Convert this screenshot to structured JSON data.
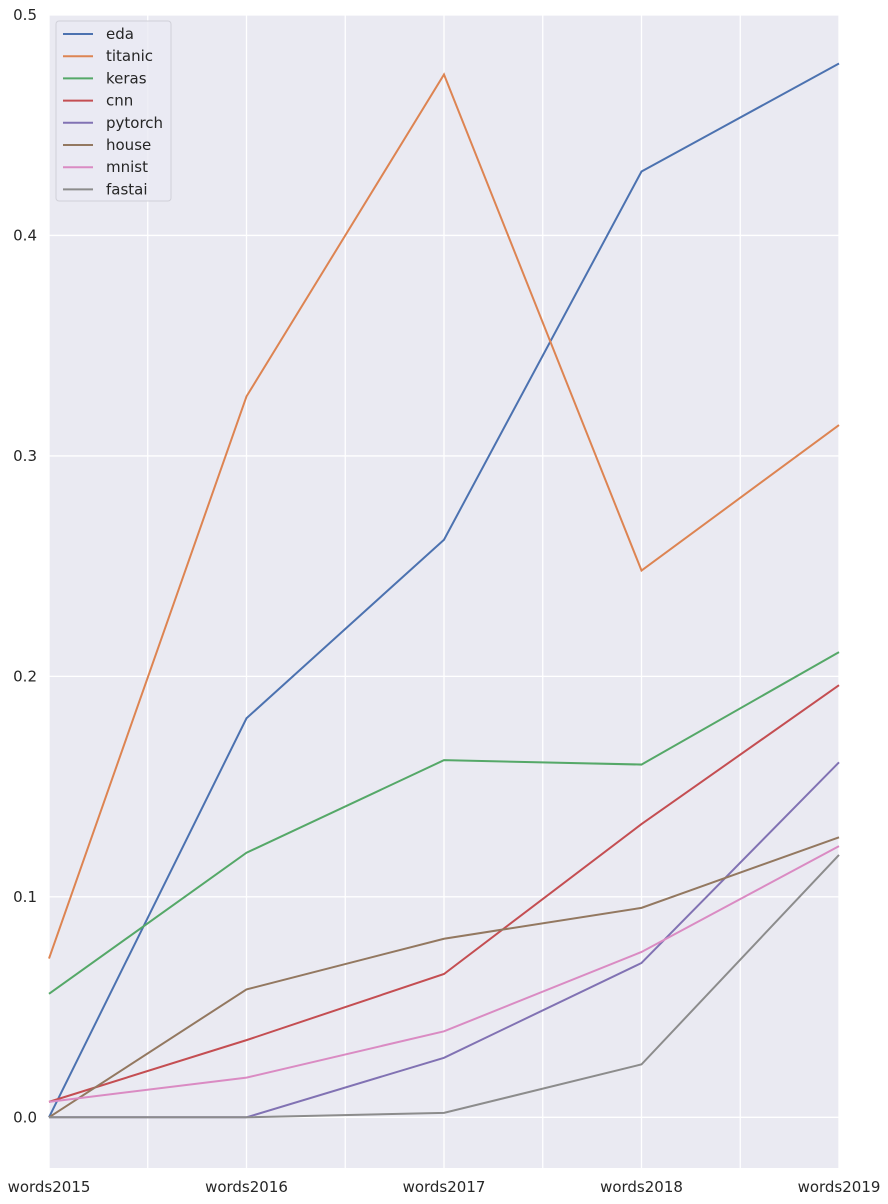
{
  "chart_data": {
    "type": "line",
    "title": "",
    "xlabel": "",
    "ylabel": "",
    "categories": [
      "words2015",
      "words2016",
      "words2017",
      "words2018",
      "words2019"
    ],
    "ylim": [
      -0.023,
      0.5
    ],
    "yticks": [
      "0.0",
      "0.1",
      "0.2",
      "0.3",
      "0.4",
      "0.5"
    ],
    "ytick_values": [
      0,
      0.1,
      0.2,
      0.3,
      0.4,
      0.5
    ],
    "grid": true,
    "background": "#eaeaf2",
    "legend_position": "top-left",
    "series": [
      {
        "name": "eda",
        "color": "#4c72b0",
        "values": [
          0.0,
          0.181,
          0.262,
          0.429,
          0.478
        ]
      },
      {
        "name": "titanic",
        "color": "#dd8452",
        "values": [
          0.072,
          0.327,
          0.473,
          0.248,
          0.314
        ]
      },
      {
        "name": "keras",
        "color": "#55a868",
        "values": [
          0.056,
          0.12,
          0.162,
          0.16,
          0.211
        ]
      },
      {
        "name": "cnn",
        "color": "#c44e52",
        "values": [
          0.007,
          0.035,
          0.065,
          0.133,
          0.196
        ]
      },
      {
        "name": "pytorch",
        "color": "#8172b3",
        "values": [
          0.0,
          0.0,
          0.027,
          0.07,
          0.161
        ]
      },
      {
        "name": "house",
        "color": "#937860",
        "values": [
          0.0,
          0.058,
          0.081,
          0.095,
          0.127
        ]
      },
      {
        "name": "mnist",
        "color": "#da8bc3",
        "values": [
          0.007,
          0.018,
          0.039,
          0.075,
          0.123
        ]
      },
      {
        "name": "fastai",
        "color": "#8c8c8c",
        "values": [
          0.0,
          0.0,
          0.002,
          0.024,
          0.119
        ]
      }
    ]
  }
}
